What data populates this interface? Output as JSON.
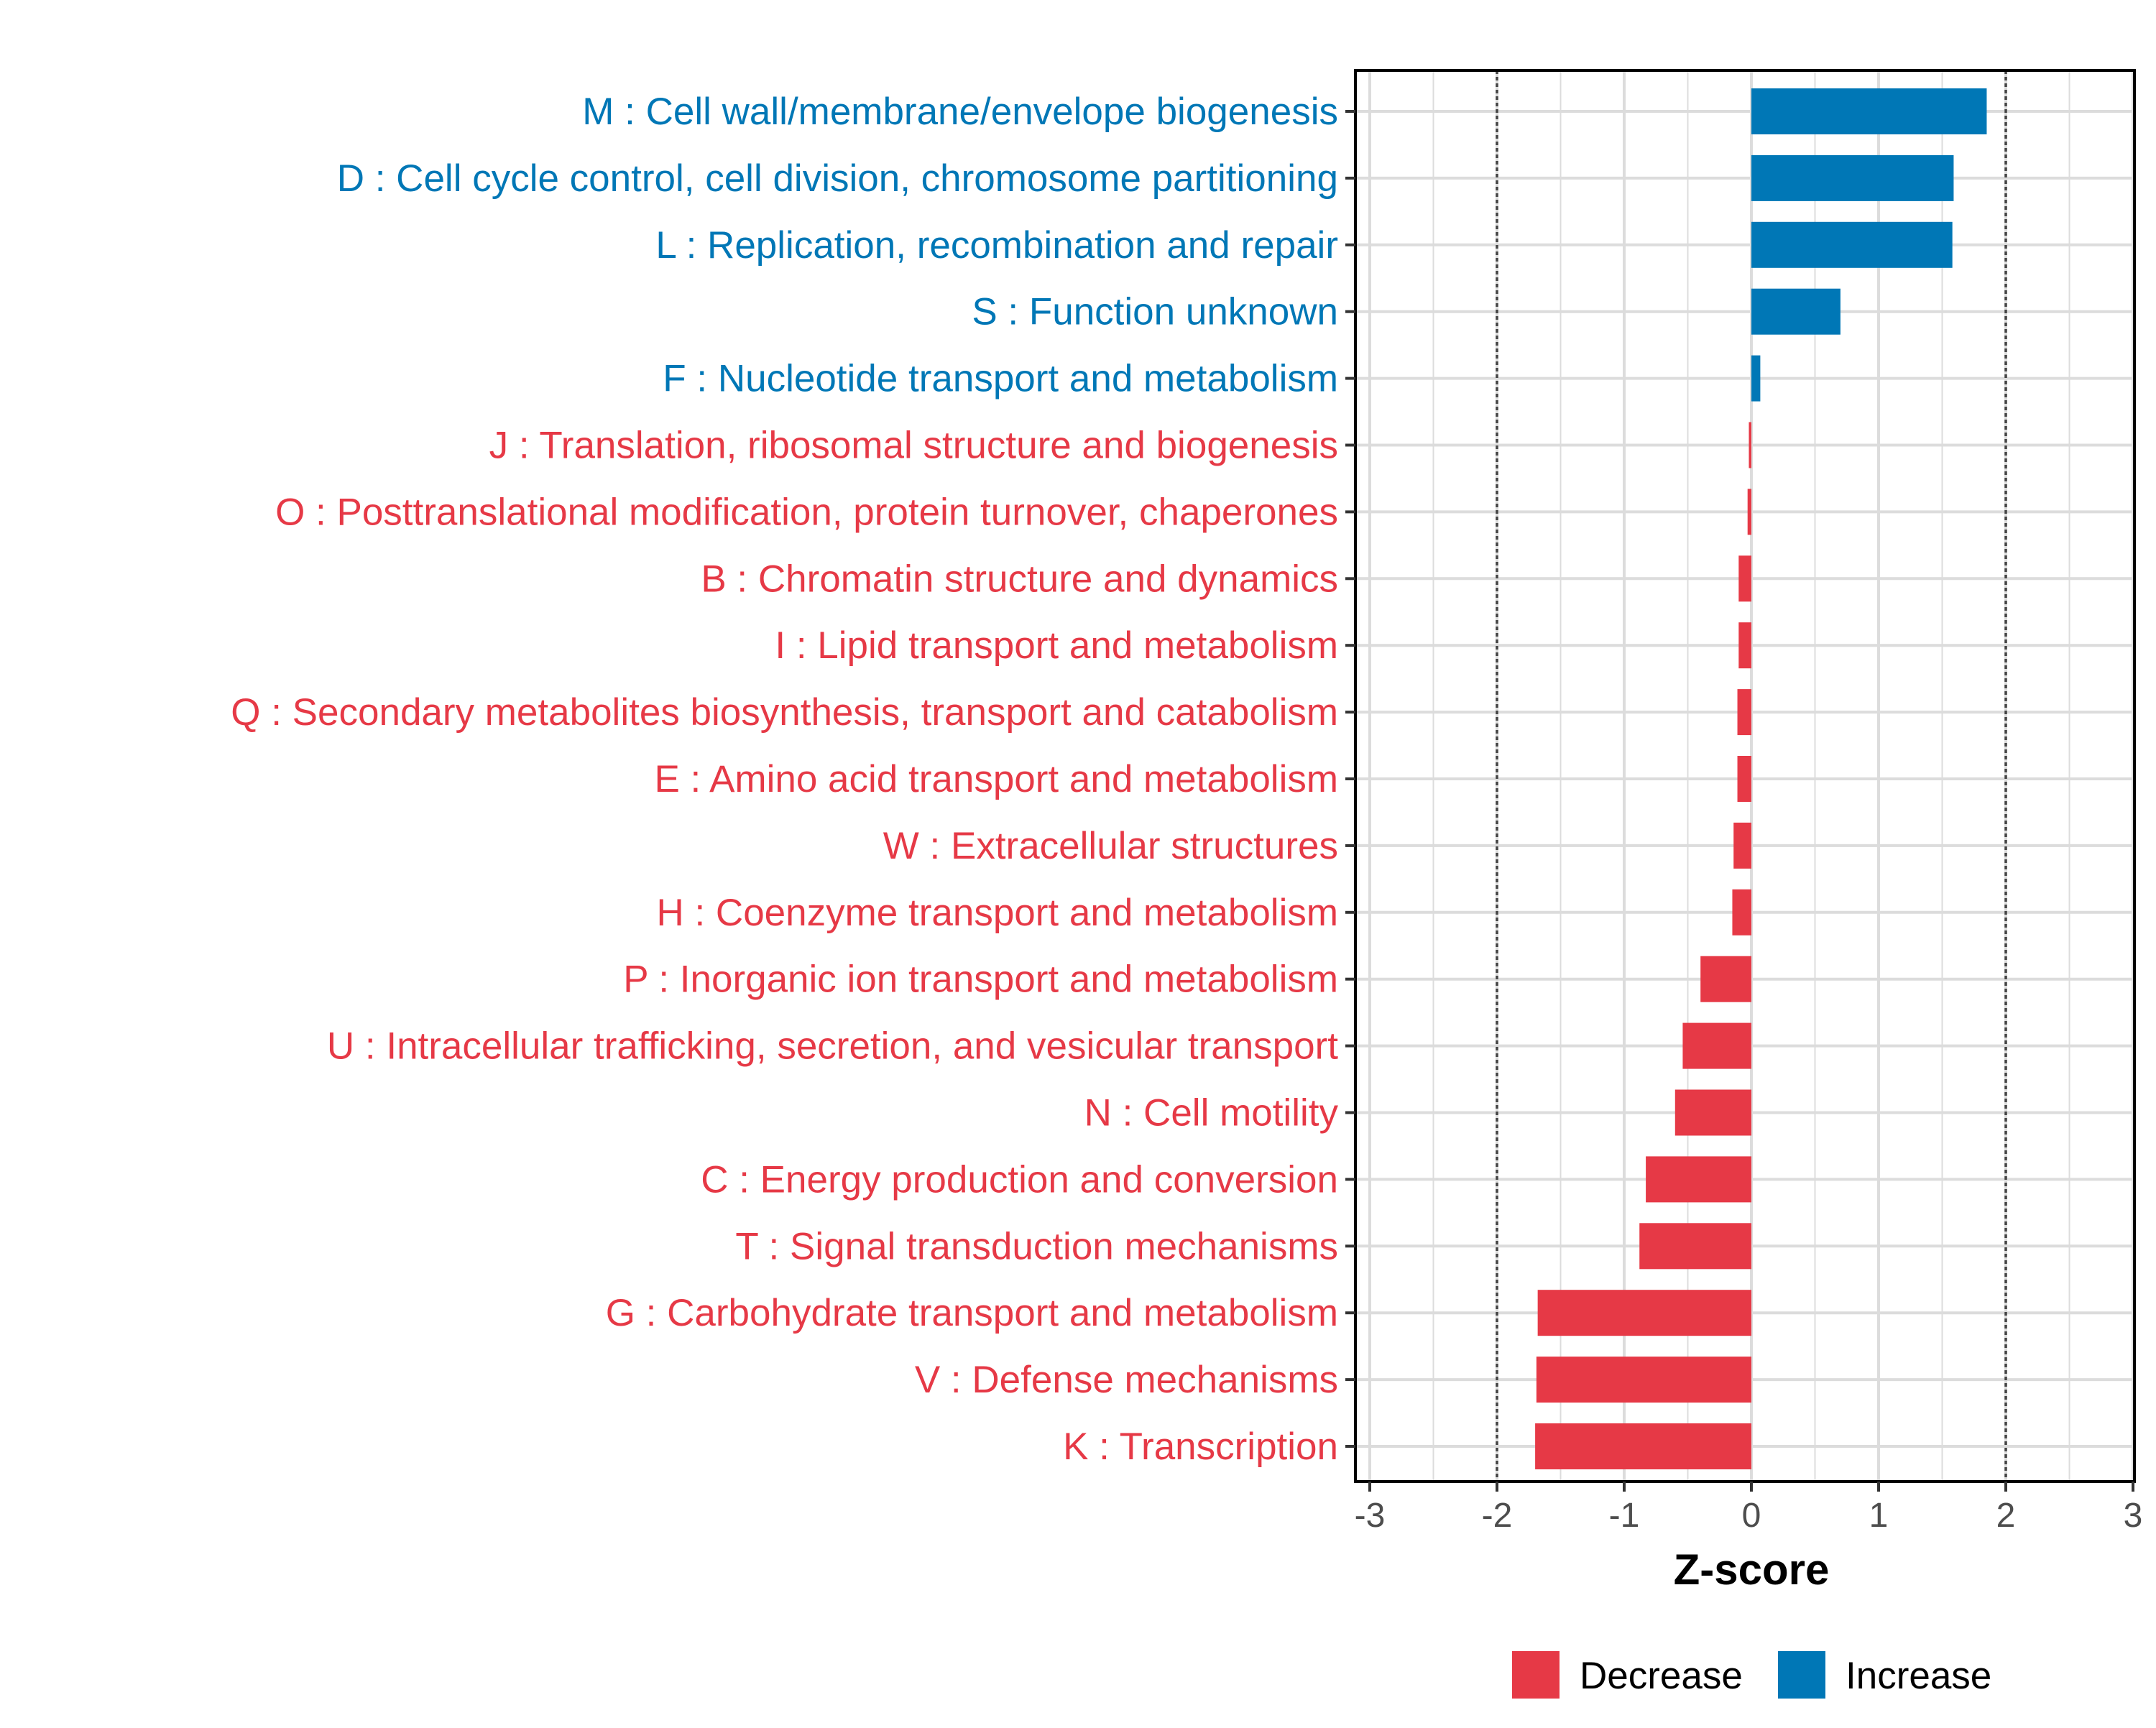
{
  "chart_data": {
    "type": "bar",
    "orientation": "horizontal",
    "xlabel": "Z-score",
    "xlim": [
      -3,
      3
    ],
    "x_ticks": [
      -3,
      -2,
      -1,
      0,
      1,
      2,
      3
    ],
    "x_tick_labels": [
      "-3",
      "-2",
      "-1",
      "0",
      "1",
      "2",
      "3"
    ],
    "reference_lines": [
      -2,
      2
    ],
    "grid": true,
    "legend_position": "bottom",
    "colors": {
      "Decrease": "#e63946",
      "Increase": "#0077b6"
    },
    "legend": [
      {
        "label": "Decrease",
        "color": "#e63946"
      },
      {
        "label": "Increase",
        "color": "#0077b6"
      }
    ],
    "categories": [
      "M : Cell wall/membrane/envelope biogenesis",
      "D : Cell cycle control, cell division, chromosome partitioning",
      "L : Replication, recombination and repair",
      "S : Function unknown",
      "F : Nucleotide transport and metabolism",
      "J : Translation, ribosomal structure and biogenesis",
      "O : Posttranslational modification, protein turnover, chaperones",
      "B : Chromatin structure and dynamics",
      "I : Lipid transport and metabolism",
      "Q : Secondary metabolites biosynthesis, transport and catabolism",
      "E : Amino acid transport and metabolism",
      "W : Extracellular structures",
      "H : Coenzyme transport and metabolism",
      "P : Inorganic ion transport and metabolism",
      "U : Intracellular trafficking, secretion, and vesicular transport",
      "N : Cell motility",
      "C : Energy production and conversion",
      "T : Signal transduction mechanisms",
      "G : Carbohydrate transport and metabolism",
      "V : Defense mechanisms",
      "K : Transcription"
    ],
    "values": [
      1.85,
      1.59,
      1.58,
      0.7,
      0.07,
      -0.02,
      -0.03,
      -0.1,
      -0.1,
      -0.11,
      -0.11,
      -0.14,
      -0.15,
      -0.4,
      -0.54,
      -0.6,
      -0.83,
      -0.88,
      -1.68,
      -1.69,
      -1.7
    ],
    "groups": [
      "Increase",
      "Increase",
      "Increase",
      "Increase",
      "Increase",
      "Decrease",
      "Decrease",
      "Decrease",
      "Decrease",
      "Decrease",
      "Decrease",
      "Decrease",
      "Decrease",
      "Decrease",
      "Decrease",
      "Decrease",
      "Decrease",
      "Decrease",
      "Decrease",
      "Decrease",
      "Decrease"
    ]
  }
}
